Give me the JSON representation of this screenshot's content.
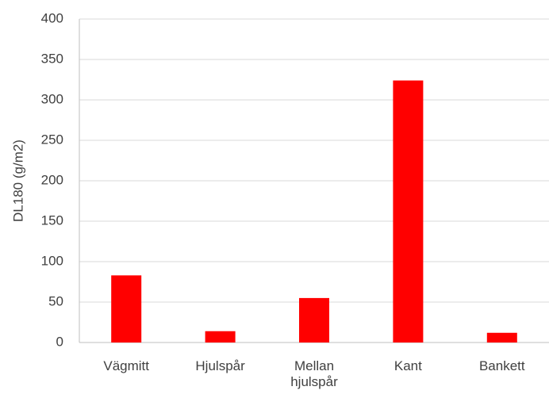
{
  "chart_data": {
    "type": "bar",
    "y_label": "DL180 (g/m2)",
    "categories": [
      "Vägmitt",
      "Hjulspår",
      "Mellan hjulspår",
      "Kant",
      "Bankett"
    ],
    "values": [
      83,
      14,
      55,
      324,
      12
    ],
    "color": "#ff0000",
    "ylim": [
      0,
      400
    ],
    "yticks": [
      0,
      50,
      100,
      150,
      200,
      250,
      300,
      350,
      400
    ],
    "grid": true
  }
}
